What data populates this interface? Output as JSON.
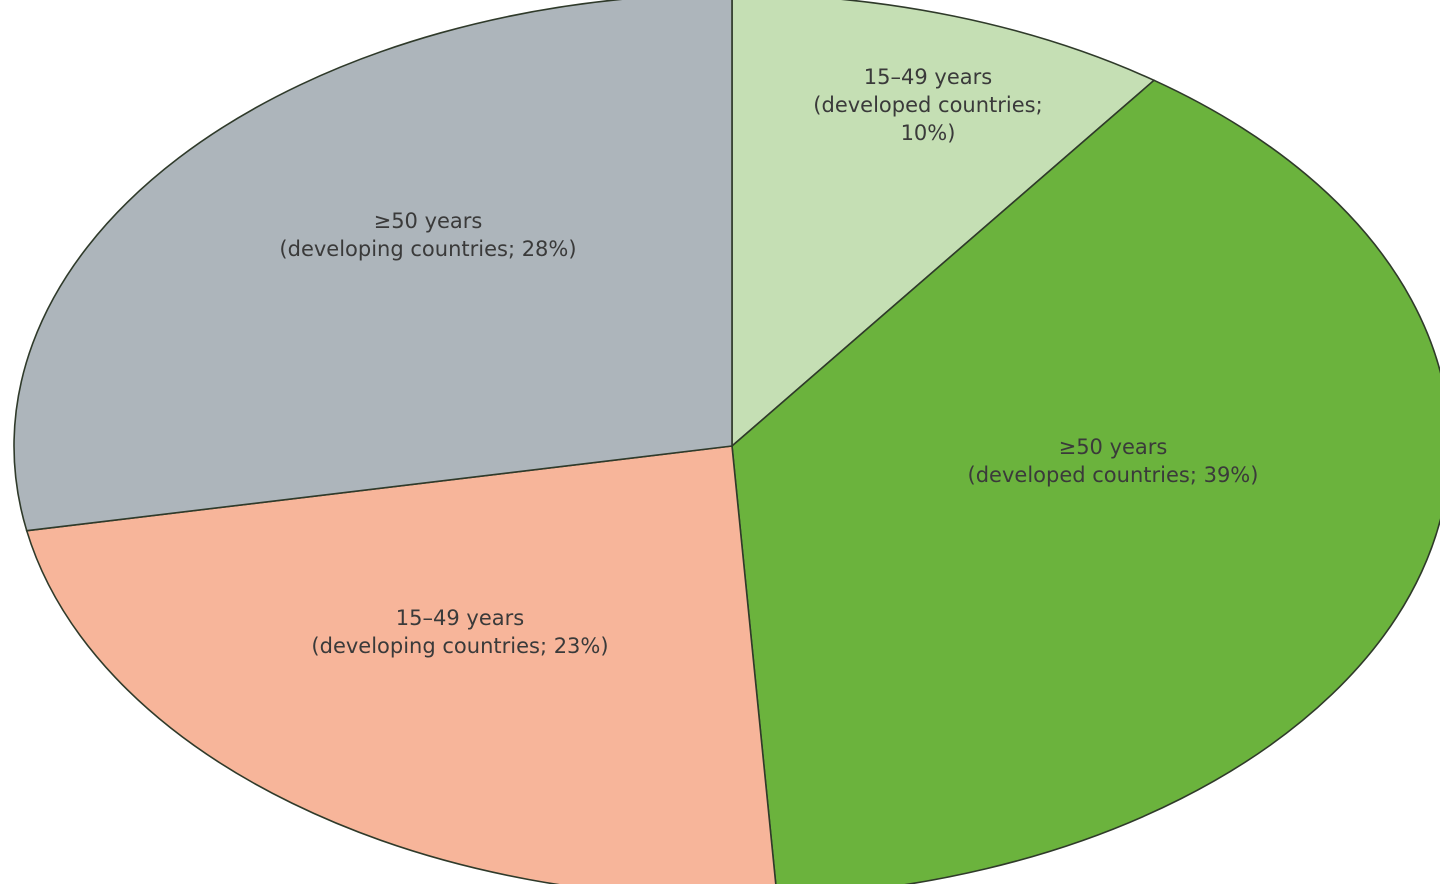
{
  "chart_data": {
    "type": "pie",
    "slices": [
      {
        "label_lines": [
          "15–49 years",
          "(developed countries;",
          "10%)"
        ],
        "category": "15–49 years",
        "group": "developed countries",
        "value": 10,
        "color": "#c5dfb4"
      },
      {
        "label_lines": [
          "≥50 years",
          "(developed countries; 39%)"
        ],
        "category": "≥50 years",
        "group": "developed countries",
        "value": 39,
        "color": "#6bb33d"
      },
      {
        "label_lines": [
          "15–49 years",
          "(developing countries; 23%)"
        ],
        "category": "15–49 years",
        "group": "developing countries",
        "value": 23,
        "color": "#f7b59a"
      },
      {
        "label_lines": [
          "≥50 years",
          "(developing countries; 28%)"
        ],
        "category": "≥50 years",
        "group": "developing countries",
        "value": 28,
        "color": "#adb5bb"
      }
    ],
    "start": "top",
    "direction": "clockwise"
  }
}
